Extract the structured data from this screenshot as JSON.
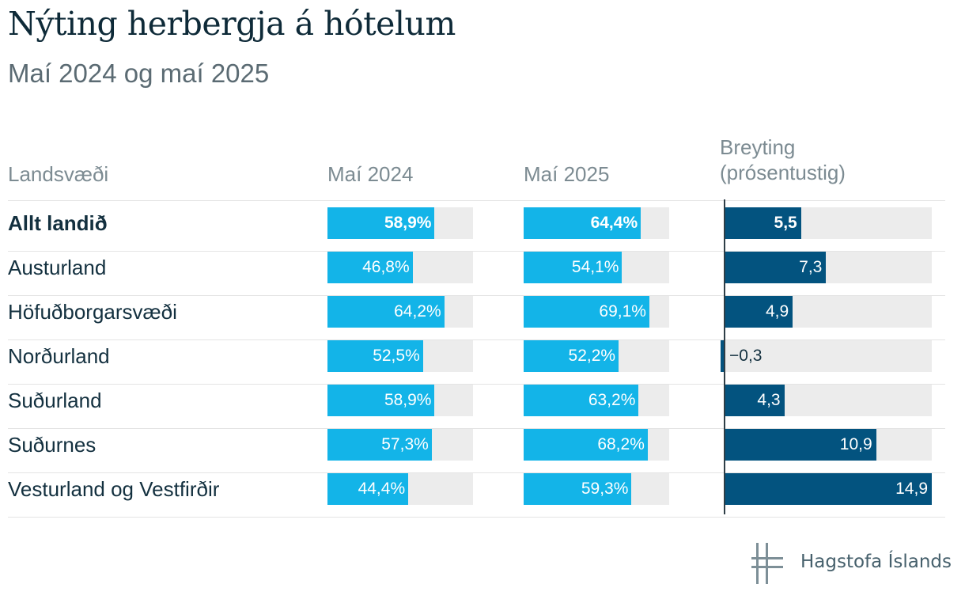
{
  "title": "Nýting herbergja á hótelum",
  "subtitle": "Maí 2024 og maí 2025",
  "headers": {
    "region": "Landsvæði",
    "may2024": "Maí 2024",
    "may2025": "Maí 2025",
    "change_line1": "Breyting",
    "change_line2": "(prósentustig)"
  },
  "footer": {
    "logo_text": "Hagstofa Íslands"
  },
  "colors": {
    "light_bar": "#13b4e8",
    "dark_bar": "#03537f",
    "track": "#ececec"
  },
  "chart_data": {
    "type": "table",
    "title": "Nýting herbergja á hótelum",
    "subtitle": "Maí 2024 og maí 2025",
    "columns": [
      "Landsvæði",
      "Maí 2024",
      "Maí 2025",
      "Breyting (prósentustig)"
    ],
    "percent_range": [
      0,
      100
    ],
    "change_range": [
      -0.3,
      14.9
    ],
    "rows": [
      {
        "name": "Allt landið",
        "bold": true,
        "may2024": 58.9,
        "may2025": 64.4,
        "change": 5.5,
        "may2024_label": "58,9%",
        "may2025_label": "64,4%",
        "change_label": "5,5"
      },
      {
        "name": "Austurland",
        "bold": false,
        "may2024": 46.8,
        "may2025": 54.1,
        "change": 7.3,
        "may2024_label": "46,8%",
        "may2025_label": "54,1%",
        "change_label": "7,3"
      },
      {
        "name": "Höfuðborgarsvæði",
        "bold": false,
        "may2024": 64.2,
        "may2025": 69.1,
        "change": 4.9,
        "may2024_label": "64,2%",
        "may2025_label": "69,1%",
        "change_label": "4,9"
      },
      {
        "name": "Norðurland",
        "bold": false,
        "may2024": 52.5,
        "may2025": 52.2,
        "change": -0.3,
        "may2024_label": "52,5%",
        "may2025_label": "52,2%",
        "change_label": "−0,3"
      },
      {
        "name": "Suðurland",
        "bold": false,
        "may2024": 58.9,
        "may2025": 63.2,
        "change": 4.3,
        "may2024_label": "58,9%",
        "may2025_label": "63,2%",
        "change_label": "4,3"
      },
      {
        "name": "Suðurnes",
        "bold": false,
        "may2024": 57.3,
        "may2025": 68.2,
        "change": 10.9,
        "may2024_label": "57,3%",
        "may2025_label": "68,2%",
        "change_label": "10,9"
      },
      {
        "name": "Vesturland og Vestfirðir",
        "bold": false,
        "may2024": 44.4,
        "may2025": 59.3,
        "change": 14.9,
        "may2024_label": "44,4%",
        "may2025_label": "59,3%",
        "change_label": "14,9"
      }
    ]
  }
}
